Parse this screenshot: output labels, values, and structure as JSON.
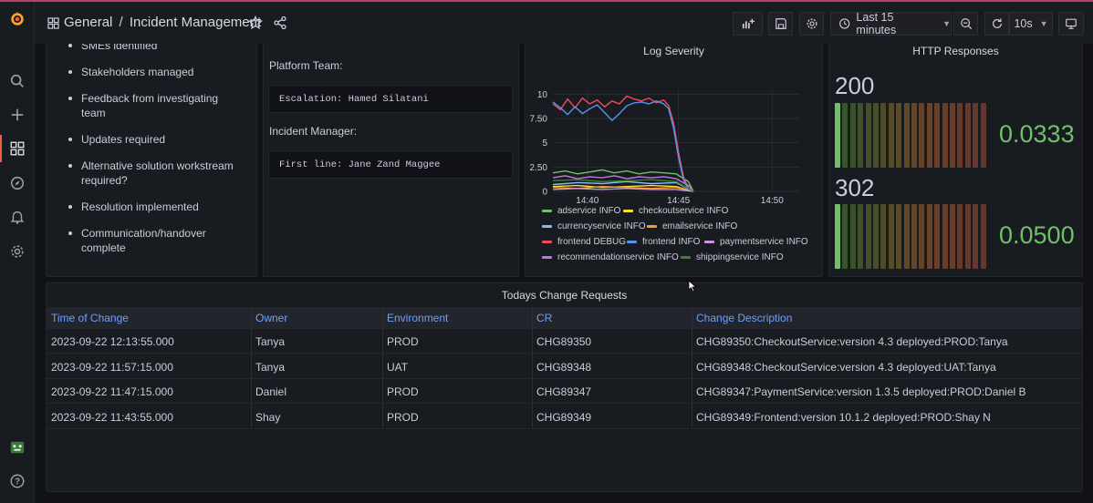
{
  "app": {
    "breadcrumb_folder": "General",
    "breadcrumb_separator": "/",
    "dashboard_title": "Incident Management",
    "time_range": "Last 15 minutes",
    "refresh_interval": "10s",
    "accent_color": "#f55f3e"
  },
  "nav": {
    "icons": [
      "grafana-logo-icon",
      "search-icon",
      "plus-icon",
      "dashboards-icon",
      "explore-icon",
      "alerting-icon",
      "settings-icon",
      "user-avatar-icon",
      "help-icon"
    ]
  },
  "checklist": {
    "items": [
      "SMEs identified",
      "Stakeholders managed",
      "Feedback from investigating team",
      "Updates required",
      "Alternative solution workstream required?",
      "Resolution implemented",
      "Communication/handover complete"
    ]
  },
  "contacts": {
    "platform_label": "Platform Team:",
    "platform_value": "Escalation: Hamed Silatani",
    "manager_label": "Incident Manager:",
    "manager_value": "First line: Jane Zand Maggee"
  },
  "chart_data": {
    "type": "line",
    "title": "Log Severity",
    "xlabel": "",
    "ylabel": "",
    "x_ticks": [
      "14:40",
      "14:45",
      "14:50"
    ],
    "y_ticks": [
      "0",
      "2.50",
      "5",
      "7.50",
      "10"
    ],
    "ylim": [
      0,
      10.5
    ],
    "xlim": [
      0,
      100
    ],
    "grid": true,
    "legend_position": "bottom",
    "series": [
      {
        "name": "adservice INFO",
        "color": "#73bf69",
        "values": [
          [
            0,
            1.9
          ],
          [
            5,
            2.1
          ],
          [
            10,
            1.8
          ],
          [
            15,
            2.0
          ],
          [
            20,
            2.2
          ],
          [
            25,
            1.9
          ],
          [
            30,
            2.1
          ],
          [
            35,
            1.8
          ],
          [
            40,
            2.0
          ],
          [
            45,
            1.9
          ],
          [
            50,
            1.8
          ],
          [
            55,
            1.0
          ],
          [
            57,
            0
          ]
        ]
      },
      {
        "name": "checkoutservice INFO",
        "color": "#fade2a",
        "values": [
          [
            0,
            0.5
          ],
          [
            10,
            0.6
          ],
          [
            20,
            0.4
          ],
          [
            30,
            0.5
          ],
          [
            40,
            0.6
          ],
          [
            50,
            0.5
          ],
          [
            57,
            0
          ]
        ]
      },
      {
        "name": "currencyservice INFO",
        "color": "#8ab8ff",
        "values": [
          [
            0,
            0.7
          ],
          [
            10,
            0.9
          ],
          [
            20,
            0.8
          ],
          [
            30,
            1.0
          ],
          [
            40,
            0.8
          ],
          [
            50,
            0.9
          ],
          [
            57,
            0
          ]
        ]
      },
      {
        "name": "emailservice INFO",
        "color": "#ff9830",
        "values": [
          [
            0,
            0.4
          ],
          [
            10,
            0.3
          ],
          [
            20,
            0.5
          ],
          [
            30,
            0.4
          ],
          [
            40,
            0.3
          ],
          [
            50,
            0.4
          ],
          [
            57,
            0
          ]
        ]
      },
      {
        "name": "frontend DEBUG",
        "color": "#f2495c",
        "values": [
          [
            0,
            9.0
          ],
          [
            3,
            8.4
          ],
          [
            6,
            9.5
          ],
          [
            9,
            8.6
          ],
          [
            12,
            9.6
          ],
          [
            15,
            9.0
          ],
          [
            18,
            9.4
          ],
          [
            21,
            8.7
          ],
          [
            24,
            9.3
          ],
          [
            27,
            9.0
          ],
          [
            30,
            9.8
          ],
          [
            33,
            9.5
          ],
          [
            36,
            9.3
          ],
          [
            39,
            9.6
          ],
          [
            42,
            9.1
          ],
          [
            45,
            9.4
          ],
          [
            47,
            8.8
          ],
          [
            49,
            7.0
          ],
          [
            51,
            4.0
          ],
          [
            53,
            1.5
          ],
          [
            55,
            0.3
          ],
          [
            57,
            0
          ]
        ]
      },
      {
        "name": "frontend INFO",
        "color": "#5794f2",
        "values": [
          [
            0,
            9.2
          ],
          [
            3,
            8.6
          ],
          [
            6,
            7.9
          ],
          [
            9,
            8.7
          ],
          [
            12,
            8.0
          ],
          [
            15,
            8.5
          ],
          [
            18,
            8.9
          ],
          [
            21,
            8.1
          ],
          [
            24,
            7.3
          ],
          [
            27,
            8.0
          ],
          [
            30,
            8.8
          ],
          [
            33,
            9.1
          ],
          [
            36,
            9.2
          ],
          [
            39,
            9.0
          ],
          [
            42,
            9.3
          ],
          [
            45,
            9.0
          ],
          [
            47,
            8.5
          ],
          [
            49,
            6.5
          ],
          [
            51,
            3.5
          ],
          [
            53,
            1.2
          ],
          [
            55,
            0.2
          ],
          [
            57,
            0
          ]
        ]
      },
      {
        "name": "paymentservice INFO",
        "color": "#ca95e5",
        "values": [
          [
            0,
            0.2
          ],
          [
            10,
            0.3
          ],
          [
            20,
            0.2
          ],
          [
            30,
            0.3
          ],
          [
            40,
            0.2
          ],
          [
            50,
            0.2
          ],
          [
            57,
            0
          ]
        ]
      },
      {
        "name": "recommendationservice INFO",
        "color": "#b877d9",
        "values": [
          [
            0,
            1.4
          ],
          [
            5,
            1.6
          ],
          [
            10,
            1.3
          ],
          [
            15,
            1.5
          ],
          [
            20,
            1.4
          ],
          [
            25,
            1.6
          ],
          [
            30,
            1.3
          ],
          [
            35,
            1.5
          ],
          [
            40,
            1.4
          ],
          [
            45,
            1.5
          ],
          [
            50,
            1.3
          ],
          [
            55,
            0.6
          ],
          [
            57,
            0
          ]
        ]
      },
      {
        "name": "shippingservice INFO",
        "color": "#37872d",
        "values": [
          [
            0,
            1.1
          ],
          [
            10,
            1.2
          ],
          [
            20,
            1.0
          ],
          [
            30,
            1.1
          ],
          [
            40,
            1.2
          ],
          [
            50,
            1.0
          ],
          [
            57,
            0
          ]
        ]
      }
    ]
  },
  "http": {
    "title": "HTTP Responses",
    "rows": [
      {
        "code": "200",
        "value": "0.0333",
        "level": 0.03
      },
      {
        "code": "302",
        "value": "0.0500",
        "level": 0.05
      }
    ],
    "value_color": "#73bf69"
  },
  "changes": {
    "title": "Todays Change Requests",
    "columns": [
      "Time of Change",
      "Owner",
      "Environment",
      "CR",
      "Change Description"
    ],
    "rows": [
      [
        "2023-09-22 12:13:55.000",
        "Tanya",
        "PROD",
        "CHG89350",
        "CHG89350:CheckoutService:version 4.3 deployed:PROD:Tanya"
      ],
      [
        "2023-09-22 11:57:15.000",
        "Tanya",
        "UAT",
        "CHG89348",
        "CHG89348:CheckoutService:version 4.3 deployed:UAT:Tanya"
      ],
      [
        "2023-09-22 11:47:15.000",
        "Daniel",
        "PROD",
        "CHG89347",
        "CHG89347:PaymentService:version 1.3.5 deployed:PROD:Daniel B"
      ],
      [
        "2023-09-22 11:43:55.000",
        "Shay",
        "PROD",
        "CHG89349",
        "CHG89349:Frontend:version 10.1.2 deployed:PROD:Shay N"
      ]
    ]
  }
}
